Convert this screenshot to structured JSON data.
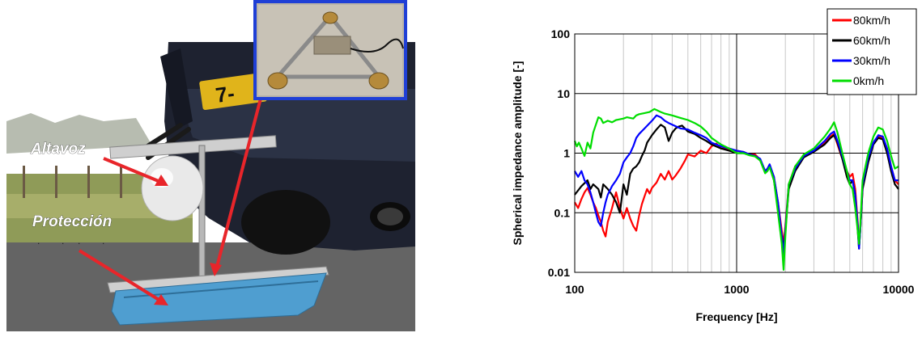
{
  "photo": {
    "annotations": {
      "speaker": "Altavoz",
      "protection": "Protección"
    },
    "plate_text": "7-",
    "colors": {
      "arrow": "#e8252a",
      "inset_border": "#1f3fd6",
      "protection_bag": "#4f9ed0"
    }
  },
  "chart_data": {
    "type": "line",
    "title": "",
    "xlabel": "Frequency [Hz]",
    "ylabel": "Spherical impedance amplitude [-]",
    "xscale": "log",
    "yscale": "log",
    "xlim": [
      100,
      10000
    ],
    "ylim": [
      0.01,
      100
    ],
    "x_ticks": [
      "100",
      "1000",
      "10000"
    ],
    "y_ticks": [
      "0.01",
      "0.1",
      "1",
      "10",
      "100"
    ],
    "grid": true,
    "legend_position": "top-right",
    "series": [
      {
        "name": "80km/h",
        "color": "#ff0000",
        "points": [
          [
            100,
            0.15
          ],
          [
            105,
            0.12
          ],
          [
            110,
            0.17
          ],
          [
            115,
            0.22
          ],
          [
            120,
            0.26
          ],
          [
            125,
            0.2
          ],
          [
            130,
            0.15
          ],
          [
            135,
            0.12
          ],
          [
            140,
            0.09
          ],
          [
            145,
            0.07
          ],
          [
            150,
            0.05
          ],
          [
            155,
            0.04
          ],
          [
            160,
            0.07
          ],
          [
            170,
            0.12
          ],
          [
            180,
            0.22
          ],
          [
            190,
            0.12
          ],
          [
            200,
            0.08
          ],
          [
            210,
            0.12
          ],
          [
            220,
            0.08
          ],
          [
            230,
            0.06
          ],
          [
            240,
            0.05
          ],
          [
            250,
            0.09
          ],
          [
            260,
            0.14
          ],
          [
            270,
            0.19
          ],
          [
            280,
            0.25
          ],
          [
            290,
            0.21
          ],
          [
            300,
            0.26
          ],
          [
            320,
            0.32
          ],
          [
            340,
            0.45
          ],
          [
            360,
            0.36
          ],
          [
            380,
            0.5
          ],
          [
            400,
            0.36
          ],
          [
            420,
            0.42
          ],
          [
            450,
            0.55
          ],
          [
            480,
            0.75
          ],
          [
            500,
            0.95
          ],
          [
            550,
            0.88
          ],
          [
            600,
            1.1
          ],
          [
            650,
            1.0
          ],
          [
            700,
            1.3
          ],
          [
            750,
            1.45
          ],
          [
            800,
            1.2
          ],
          [
            850,
            1.2
          ],
          [
            900,
            1.1
          ],
          [
            1000,
            1.1
          ],
          [
            1100,
            1.05
          ],
          [
            1200,
            0.95
          ],
          [
            1300,
            0.95
          ],
          [
            1400,
            0.78
          ],
          [
            1500,
            0.5
          ],
          [
            1550,
            0.55
          ],
          [
            1600,
            0.62
          ],
          [
            1700,
            0.4
          ],
          [
            1800,
            0.15
          ],
          [
            1900,
            0.05
          ],
          [
            1950,
            0.03
          ],
          [
            2000,
            0.06
          ],
          [
            2100,
            0.3
          ],
          [
            2300,
            0.6
          ],
          [
            2600,
            0.9
          ],
          [
            3000,
            1.1
          ],
          [
            3500,
            1.5
          ],
          [
            3800,
            1.9
          ],
          [
            4000,
            2.1
          ],
          [
            4200,
            1.4
          ],
          [
            4500,
            0.8
          ],
          [
            4800,
            0.5
          ],
          [
            5000,
            0.4
          ],
          [
            5200,
            0.45
          ],
          [
            5400,
            0.25
          ],
          [
            5600,
            0.07
          ],
          [
            5700,
            0.03
          ],
          [
            5800,
            0.05
          ],
          [
            6000,
            0.25
          ],
          [
            6500,
            0.8
          ],
          [
            7000,
            1.5
          ],
          [
            7500,
            1.9
          ],
          [
            8000,
            1.8
          ],
          [
            8500,
            1.2
          ],
          [
            9000,
            0.6
          ],
          [
            9500,
            0.35
          ],
          [
            10000,
            0.3
          ]
        ]
      },
      {
        "name": "60km/h",
        "color": "#000000",
        "points": [
          [
            100,
            0.2
          ],
          [
            110,
            0.28
          ],
          [
            120,
            0.35
          ],
          [
            125,
            0.25
          ],
          [
            130,
            0.3
          ],
          [
            140,
            0.25
          ],
          [
            145,
            0.18
          ],
          [
            150,
            0.3
          ],
          [
            160,
            0.25
          ],
          [
            170,
            0.2
          ],
          [
            180,
            0.15
          ],
          [
            190,
            0.1
          ],
          [
            200,
            0.3
          ],
          [
            210,
            0.2
          ],
          [
            220,
            0.45
          ],
          [
            230,
            0.55
          ],
          [
            240,
            0.6
          ],
          [
            250,
            0.7
          ],
          [
            260,
            0.9
          ],
          [
            270,
            1.1
          ],
          [
            280,
            1.5
          ],
          [
            300,
            2.0
          ],
          [
            320,
            2.5
          ],
          [
            340,
            3.0
          ],
          [
            360,
            2.7
          ],
          [
            380,
            1.6
          ],
          [
            400,
            2.2
          ],
          [
            420,
            2.6
          ],
          [
            440,
            2.8
          ],
          [
            460,
            2.9
          ],
          [
            500,
            2.3
          ],
          [
            550,
            2.1
          ],
          [
            600,
            1.8
          ],
          [
            650,
            1.6
          ],
          [
            700,
            1.4
          ],
          [
            800,
            1.2
          ],
          [
            900,
            1.1
          ],
          [
            1000,
            1.0
          ],
          [
            1100,
            1.0
          ],
          [
            1200,
            0.95
          ],
          [
            1300,
            0.9
          ],
          [
            1400,
            0.75
          ],
          [
            1500,
            0.48
          ],
          [
            1550,
            0.52
          ],
          [
            1600,
            0.6
          ],
          [
            1700,
            0.35
          ],
          [
            1800,
            0.12
          ],
          [
            1900,
            0.04
          ],
          [
            1950,
            0.025
          ],
          [
            2000,
            0.05
          ],
          [
            2100,
            0.25
          ],
          [
            2300,
            0.5
          ],
          [
            2600,
            0.85
          ],
          [
            3000,
            1.05
          ],
          [
            3500,
            1.4
          ],
          [
            3800,
            1.8
          ],
          [
            4000,
            2.0
          ],
          [
            4200,
            1.5
          ],
          [
            4500,
            0.8
          ],
          [
            4800,
            0.4
          ],
          [
            5000,
            0.3
          ],
          [
            5200,
            0.35
          ],
          [
            5400,
            0.2
          ],
          [
            5600,
            0.05
          ],
          [
            5700,
            0.025
          ],
          [
            5800,
            0.05
          ],
          [
            6000,
            0.25
          ],
          [
            6500,
            0.7
          ],
          [
            7000,
            1.4
          ],
          [
            7500,
            1.8
          ],
          [
            8000,
            1.7
          ],
          [
            8500,
            1.0
          ],
          [
            9000,
            0.5
          ],
          [
            9500,
            0.3
          ],
          [
            10000,
            0.25
          ]
        ]
      },
      {
        "name": "30km/h",
        "color": "#0000ff",
        "points": [
          [
            100,
            0.5
          ],
          [
            105,
            0.4
          ],
          [
            110,
            0.5
          ],
          [
            115,
            0.35
          ],
          [
            120,
            0.3
          ],
          [
            125,
            0.22
          ],
          [
            130,
            0.15
          ],
          [
            135,
            0.1
          ],
          [
            140,
            0.07
          ],
          [
            145,
            0.06
          ],
          [
            150,
            0.1
          ],
          [
            155,
            0.15
          ],
          [
            160,
            0.2
          ],
          [
            170,
            0.28
          ],
          [
            180,
            0.35
          ],
          [
            190,
            0.45
          ],
          [
            200,
            0.7
          ],
          [
            210,
            0.85
          ],
          [
            220,
            1.0
          ],
          [
            230,
            1.3
          ],
          [
            240,
            1.8
          ],
          [
            250,
            2.1
          ],
          [
            270,
            2.6
          ],
          [
            300,
            3.5
          ],
          [
            320,
            4.3
          ],
          [
            340,
            4.0
          ],
          [
            360,
            3.5
          ],
          [
            380,
            3.2
          ],
          [
            400,
            3.0
          ],
          [
            450,
            2.6
          ],
          [
            500,
            2.5
          ],
          [
            550,
            2.2
          ],
          [
            600,
            2.0
          ],
          [
            650,
            1.8
          ],
          [
            700,
            1.5
          ],
          [
            800,
            1.3
          ],
          [
            900,
            1.2
          ],
          [
            1000,
            1.1
          ],
          [
            1100,
            1.05
          ],
          [
            1200,
            0.95
          ],
          [
            1300,
            0.9
          ],
          [
            1400,
            0.8
          ],
          [
            1500,
            0.5
          ],
          [
            1550,
            0.55
          ],
          [
            1600,
            0.65
          ],
          [
            1700,
            0.4
          ],
          [
            1800,
            0.15
          ],
          [
            1900,
            0.04
          ],
          [
            1950,
            0.02
          ],
          [
            2000,
            0.05
          ],
          [
            2100,
            0.3
          ],
          [
            2300,
            0.55
          ],
          [
            2600,
            0.9
          ],
          [
            3000,
            1.1
          ],
          [
            3500,
            1.6
          ],
          [
            3800,
            2.1
          ],
          [
            4000,
            2.3
          ],
          [
            4200,
            1.6
          ],
          [
            4500,
            0.9
          ],
          [
            4800,
            0.5
          ],
          [
            5000,
            0.35
          ],
          [
            5200,
            0.35
          ],
          [
            5400,
            0.2
          ],
          [
            5600,
            0.06
          ],
          [
            5700,
            0.025
          ],
          [
            5800,
            0.05
          ],
          [
            6000,
            0.3
          ],
          [
            6500,
            0.85
          ],
          [
            7000,
            1.5
          ],
          [
            7500,
            2.0
          ],
          [
            8000,
            1.9
          ],
          [
            8500,
            1.2
          ],
          [
            9000,
            0.6
          ],
          [
            9500,
            0.35
          ],
          [
            10000,
            0.35
          ]
        ]
      },
      {
        "name": "0km/h",
        "color": "#00dd00",
        "points": [
          [
            100,
            1.6
          ],
          [
            103,
            1.3
          ],
          [
            106,
            1.5
          ],
          [
            110,
            1.2
          ],
          [
            115,
            0.9
          ],
          [
            120,
            1.5
          ],
          [
            125,
            1.2
          ],
          [
            130,
            2.2
          ],
          [
            135,
            3.0
          ],
          [
            140,
            4.0
          ],
          [
            145,
            3.8
          ],
          [
            150,
            3.2
          ],
          [
            160,
            3.5
          ],
          [
            170,
            3.3
          ],
          [
            180,
            3.6
          ],
          [
            190,
            3.7
          ],
          [
            200,
            3.8
          ],
          [
            210,
            4.0
          ],
          [
            220,
            3.9
          ],
          [
            230,
            3.8
          ],
          [
            240,
            4.3
          ],
          [
            250,
            4.5
          ],
          [
            270,
            4.7
          ],
          [
            290,
            4.9
          ],
          [
            310,
            5.5
          ],
          [
            320,
            5.3
          ],
          [
            340,
            4.9
          ],
          [
            360,
            4.6
          ],
          [
            400,
            4.3
          ],
          [
            450,
            3.9
          ],
          [
            500,
            3.6
          ],
          [
            550,
            3.2
          ],
          [
            600,
            2.8
          ],
          [
            650,
            2.3
          ],
          [
            700,
            1.8
          ],
          [
            800,
            1.4
          ],
          [
            900,
            1.2
          ],
          [
            1000,
            1.0
          ],
          [
            1100,
            1.0
          ],
          [
            1200,
            0.92
          ],
          [
            1300,
            0.88
          ],
          [
            1400,
            0.75
          ],
          [
            1500,
            0.46
          ],
          [
            1550,
            0.5
          ],
          [
            1600,
            0.58
          ],
          [
            1700,
            0.35
          ],
          [
            1800,
            0.1
          ],
          [
            1900,
            0.03
          ],
          [
            1950,
            0.011
          ],
          [
            2000,
            0.04
          ],
          [
            2100,
            0.3
          ],
          [
            2300,
            0.6
          ],
          [
            2600,
            0.95
          ],
          [
            3000,
            1.2
          ],
          [
            3500,
            1.9
          ],
          [
            3800,
            2.6
          ],
          [
            4000,
            3.3
          ],
          [
            4200,
            2.2
          ],
          [
            4500,
            1.0
          ],
          [
            4800,
            0.5
          ],
          [
            5000,
            0.3
          ],
          [
            5200,
            0.25
          ],
          [
            5400,
            0.12
          ],
          [
            5600,
            0.05
          ],
          [
            5700,
            0.03
          ],
          [
            5800,
            0.06
          ],
          [
            6000,
            0.35
          ],
          [
            6500,
            1.0
          ],
          [
            7000,
            1.9
          ],
          [
            7500,
            2.7
          ],
          [
            8000,
            2.5
          ],
          [
            8500,
            1.6
          ],
          [
            9000,
            0.9
          ],
          [
            9500,
            0.55
          ],
          [
            10000,
            0.6
          ]
        ]
      }
    ]
  }
}
